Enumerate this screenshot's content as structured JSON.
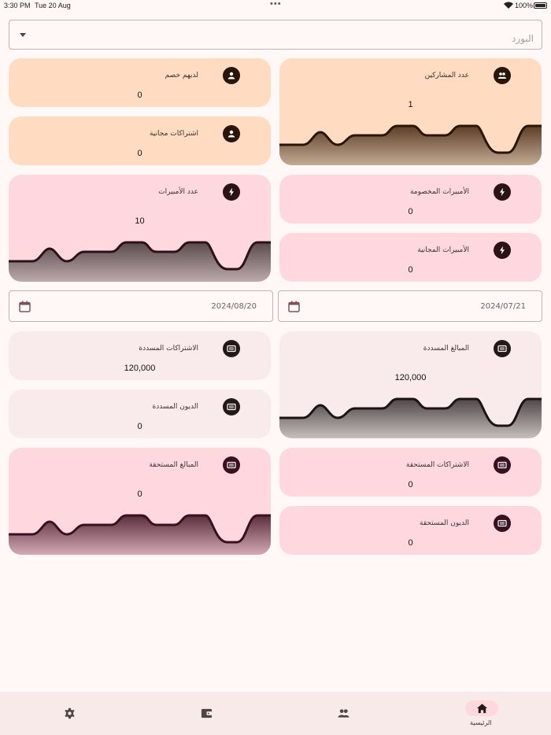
{
  "status_bar": {
    "time": "3:30 PM",
    "date": "Tue 20 Aug",
    "battery": "100%"
  },
  "board_select": {
    "placeholder": "البورد"
  },
  "cards": {
    "participants": {
      "title": "عدد المشاركين",
      "value": "1"
    },
    "with_discount": {
      "title": "لديهم خصم",
      "value": "0"
    },
    "free_subscriptions": {
      "title": "اشتراكات مجانية",
      "value": "0"
    },
    "discounted_amperes": {
      "title": "الأمبيرات المخصومة",
      "value": "0"
    },
    "amperes_count": {
      "title": "عدد الأمبيرات",
      "value": "10"
    },
    "free_amperes": {
      "title": "الأمبيرات المجانية",
      "value": "0"
    },
    "paid_amounts": {
      "title": "المبالغ المسددة",
      "value": "120,000"
    },
    "paid_subscriptions": {
      "title": "الاشتراكات المسددة",
      "value": "120,000"
    },
    "paid_debts": {
      "title": "الديون المسددة",
      "value": "0"
    },
    "due_subscriptions": {
      "title": "الاشتراكات المستحقة",
      "value": "0"
    },
    "due_amounts": {
      "title": "المبالغ المستحقة",
      "value": "0"
    },
    "due_debts": {
      "title": "الديون المستحقة",
      "value": "0"
    }
  },
  "date_range": {
    "from": "2024/07/21",
    "to": "2024/08/20"
  },
  "bottom_nav": {
    "home_label": "الرئيسية"
  },
  "colors": {
    "peach": "#ffdcc1",
    "pink": "#ffd8df",
    "rose": "#f9ebeb",
    "background": "#fff8f7"
  }
}
